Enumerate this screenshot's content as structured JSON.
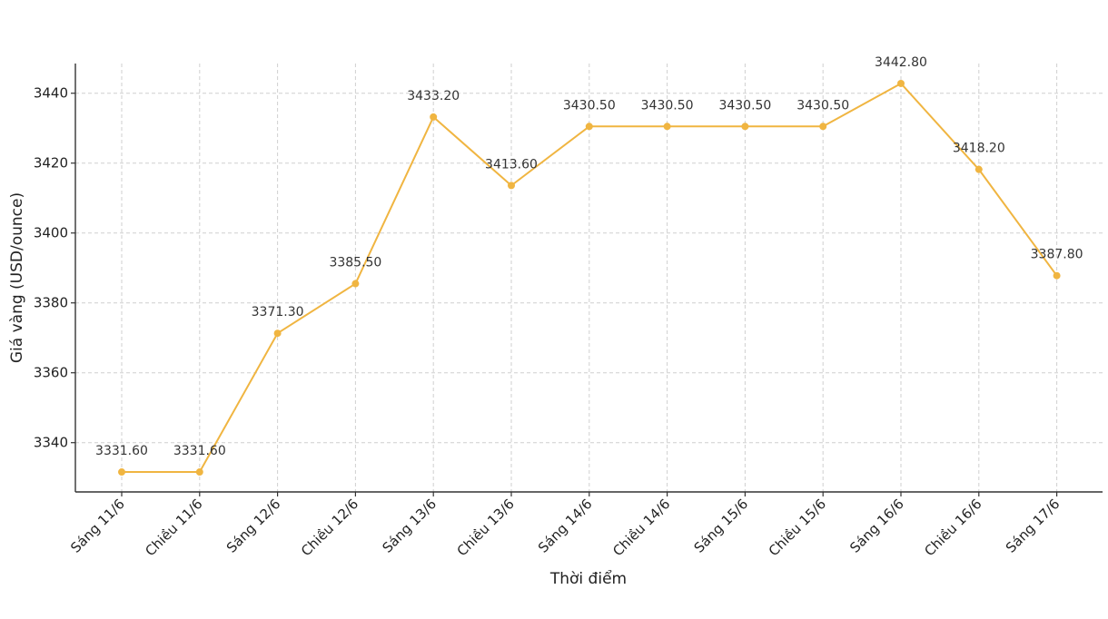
{
  "chart_data": {
    "type": "line",
    "title": "",
    "xlabel": "Thời điểm",
    "ylabel": "Giá vàng (USD/ounce)",
    "categories": [
      "Sáng 11/6",
      "Chiều 11/6",
      "Sáng 12/6",
      "Chiều 12/6",
      "Sáng 13/6",
      "Chiều 13/6",
      "Sáng 14/6",
      "Chiều 14/6",
      "Sáng 15/6",
      "Chiều 15/6",
      "Sáng 16/6",
      "Chiều 16/6",
      "Sáng 17/6"
    ],
    "series": [
      {
        "values": [
          3331.6,
          3331.6,
          3371.3,
          3385.5,
          3433.2,
          3413.6,
          3430.5,
          3430.5,
          3430.5,
          3430.5,
          3442.8,
          3418.2,
          3387.8
        ],
        "labels": [
          "3331.60",
          "3331.60",
          "3371.30",
          "3385.50",
          "3433.20",
          "3413.60",
          "3430.50",
          "3430.50",
          "3430.50",
          "3430.50",
          "3442.80",
          "3418.20",
          "3387.80"
        ]
      }
    ],
    "yticks": [
      3340,
      3360,
      3380,
      3400,
      3420,
      3440
    ],
    "ylim": [
      3325.9,
      3448.5
    ],
    "grid": true,
    "legend": "none",
    "color": "#f0b541"
  }
}
